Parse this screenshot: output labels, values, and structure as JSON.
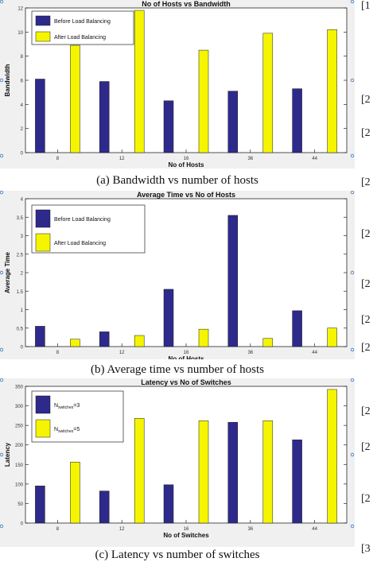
{
  "chart_data": [
    {
      "type": "bar",
      "title": "No of Hosts vs Bandwidth",
      "xlabel": "No of Hosts",
      "ylabel": "Bandwidth",
      "categories": [
        "8",
        "12",
        "16",
        "36",
        "44"
      ],
      "yticks": [
        "0",
        "2",
        "4",
        "6",
        "8",
        "10",
        "12"
      ],
      "ylim": [
        0,
        12
      ],
      "legend_position": "top-left",
      "series": [
        {
          "name": "Before Load Balancing",
          "color": "#2e2a8c",
          "values": [
            6.1,
            5.9,
            4.3,
            5.1,
            5.3
          ]
        },
        {
          "name": "After Load Balancing",
          "color": "#f5f500",
          "values": [
            8.9,
            11.8,
            8.5,
            9.9,
            10.2
          ]
        }
      ]
    },
    {
      "type": "bar",
      "title": "Average Time vs No of Hosts",
      "xlabel": "No of Hosts",
      "ylabel": "Average Time",
      "categories": [
        "8",
        "12",
        "16",
        "36",
        "44"
      ],
      "yticks": [
        "0",
        "0.5",
        "1",
        "1.5",
        "2",
        "2.5",
        "3",
        "3.5",
        "4"
      ],
      "ylim": [
        0,
        4
      ],
      "legend_position": "top-left",
      "series": [
        {
          "name": "Before Load Balancing",
          "color": "#2e2a8c",
          "values": [
            0.55,
            0.4,
            1.55,
            3.55,
            0.97
          ]
        },
        {
          "name": "After Load Balancing",
          "color": "#f5f500",
          "values": [
            0.2,
            0.3,
            0.47,
            0.22,
            0.5
          ]
        }
      ]
    },
    {
      "type": "bar",
      "title": "Latency vs No of Switches",
      "xlabel": "No of Switches",
      "ylabel": "Latency",
      "categories": [
        "8",
        "12",
        "16",
        "36",
        "44"
      ],
      "yticks": [
        "0",
        "50",
        "100",
        "150",
        "200",
        "250",
        "300",
        "350"
      ],
      "ylim": [
        0,
        350
      ],
      "legend_position": "top-left",
      "series": [
        {
          "name": "N",
          "sub": "switches",
          "suffix": "=3",
          "color": "#2e2a8c",
          "values": [
            95,
            82,
            98,
            258,
            213
          ]
        },
        {
          "name": "N",
          "sub": "switches",
          "suffix": "=5",
          "color": "#f5f500",
          "values": [
            156,
            268,
            262,
            262,
            342
          ]
        }
      ]
    }
  ],
  "captions": [
    "(a) Bandwidth vs number of hosts",
    "(b) Average time vs number of hosts",
    "(c) Latency vs number of switches"
  ],
  "refs": [
    "[1",
    "[2",
    "[2",
    "[2",
    "[2",
    "[2",
    "[2",
    "[2",
    "[2",
    "[2",
    "[2",
    "[3"
  ]
}
